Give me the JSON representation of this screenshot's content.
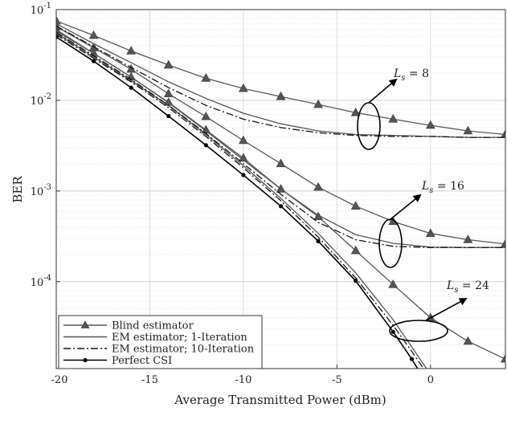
{
  "chart_data": {
    "type": "line",
    "xlabel": "Average Transmitted Power (dBm)",
    "ylabel": "BER",
    "xlim": [
      -20,
      4
    ],
    "ylim": [
      1.1e-05,
      0.1
    ],
    "yscale": "log",
    "grid": true,
    "legend_position": "bottom-left",
    "x_ticks": [
      "-20",
      "-15",
      "-10",
      "-5",
      "0"
    ],
    "x_tick_values": [
      -20,
      -15,
      -10,
      -5,
      0
    ],
    "y_ticks": [
      {
        "value": 0.1,
        "base": "10",
        "exp": "-1"
      },
      {
        "value": 0.01,
        "base": "10",
        "exp": "-2"
      },
      {
        "value": 0.001,
        "base": "10",
        "exp": "-3"
      },
      {
        "value": 0.0001,
        "base": "10",
        "exp": "-4"
      }
    ],
    "series": [
      {
        "name": "Blind estimator",
        "style": "solid",
        "marker": "triangle",
        "color": "#555555",
        "curves": [
          {
            "x": [
              -20,
              -18,
              -16,
              -14,
              -12,
              -10,
              -8,
              -6,
              -4,
              -2,
              0,
              2,
              4
            ],
            "y": [
              0.075,
              0.052,
              0.035,
              0.0245,
              0.0175,
              0.0135,
              0.011,
              0.009,
              0.0073,
              0.0062,
              0.0053,
              0.0046,
              0.0042
            ]
          },
          {
            "x": [
              -20,
              -18,
              -16,
              -14,
              -12,
              -10,
              -8,
              -6,
              -4,
              -2,
              0,
              2,
              4
            ],
            "y": [
              0.065,
              0.038,
              0.022,
              0.0118,
              0.0066,
              0.0036,
              0.002,
              0.0011,
              0.00068,
              0.00046,
              0.00034,
              0.00029,
              0.00026
            ]
          },
          {
            "x": [
              -20,
              -18,
              -16,
              -14,
              -12,
              -10,
              -8,
              -6,
              -4,
              -2,
              0,
              2,
              4
            ],
            "y": [
              0.06,
              0.033,
              0.018,
              0.0095,
              0.0047,
              0.0023,
              0.00105,
              0.00052,
              0.00022,
              9.3e-05,
              4e-05,
              2.2e-05,
              1.4e-05
            ]
          }
        ]
      },
      {
        "name": "EM estimator; 1-Iteration",
        "style": "solid",
        "marker": "none",
        "color": "#555555",
        "curves": [
          {
            "x": [
              -20,
              -18,
              -16,
              -14,
              -12,
              -10,
              -8,
              -6,
              -4,
              -2,
              0,
              2,
              4
            ],
            "y": [
              0.07,
              0.042,
              0.026,
              0.016,
              0.0105,
              0.0072,
              0.0055,
              0.0046,
              0.0042,
              0.0041,
              0.004,
              0.0039,
              0.0039
            ]
          },
          {
            "x": [
              -20,
              -18,
              -16,
              -14,
              -12,
              -10,
              -8,
              -6,
              -4,
              -2,
              0,
              2,
              4
            ],
            "y": [
              0.058,
              0.033,
              0.018,
              0.0094,
              0.0046,
              0.0022,
              0.00105,
              0.00054,
              0.00033,
              0.000265,
              0.00024,
              0.000238,
              0.000238
            ]
          },
          {
            "x": [
              -20,
              -18,
              -16,
              -14,
              -12,
              -10,
              -8,
              -6,
              -4,
              -2,
              -1,
              0
            ],
            "y": [
              0.055,
              0.03,
              0.0165,
              0.0087,
              0.0042,
              0.0019,
              0.00083,
              0.00034,
              0.000125,
              3.8e-05,
              1.9e-05,
              9.5e-06
            ]
          }
        ]
      },
      {
        "name": "EM estimator; 10-Iteration",
        "style": "dashdot",
        "marker": "none",
        "color": "#111111",
        "curves": [
          {
            "x": [
              -20,
              -18,
              -16,
              -14,
              -12,
              -10,
              -8,
              -6,
              -4,
              -2,
              0,
              2,
              4
            ],
            "y": [
              0.066,
              0.039,
              0.023,
              0.0138,
              0.0088,
              0.0062,
              0.005,
              0.0044,
              0.0041,
              0.004,
              0.004,
              0.0039,
              0.0039
            ]
          },
          {
            "x": [
              -20,
              -18,
              -16,
              -14,
              -12,
              -10,
              -8,
              -6,
              -4,
              -2,
              0,
              2,
              4
            ],
            "y": [
              0.056,
              0.031,
              0.017,
              0.0088,
              0.0043,
              0.002,
              0.00092,
              0.00045,
              0.00029,
              0.000245,
              0.000238,
              0.000238,
              0.000238
            ]
          },
          {
            "x": [
              -20,
              -18,
              -16,
              -14,
              -12,
              -10,
              -8,
              -6,
              -4,
              -2,
              -1,
              0
            ],
            "y": [
              0.053,
              0.029,
              0.016,
              0.0083,
              0.004,
              0.0018,
              0.00078,
              0.00031,
              0.00011,
              3.3e-05,
              1.7e-05,
              8.5e-06
            ]
          }
        ]
      },
      {
        "name": "Perfect CSI",
        "style": "solid",
        "marker": "dot",
        "color": "#000000",
        "curves": [
          {
            "x": [
              -20,
              -18,
              -16,
              -14,
              -12,
              -10,
              -8,
              -6,
              -4,
              -2,
              -1,
              -0.5
            ],
            "y": [
              0.05,
              0.027,
              0.0138,
              0.0067,
              0.0032,
              0.0015,
              0.00068,
              0.00028,
              0.000102,
              2.8e-05,
              1.4e-05,
              9.5e-06
            ]
          }
        ]
      }
    ],
    "annotations": [
      {
        "var": "L",
        "sub": "s",
        "text": " = 8"
      },
      {
        "var": "L",
        "sub": "s",
        "text": " = 16"
      },
      {
        "var": "L",
        "sub": "s",
        "text": " = 24"
      }
    ]
  }
}
